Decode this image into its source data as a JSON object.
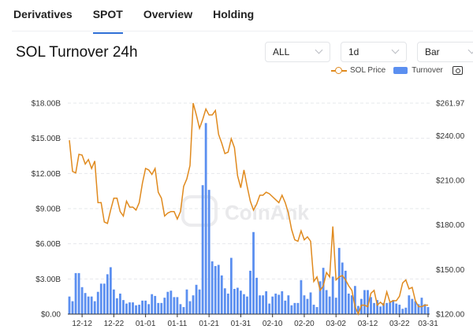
{
  "tabs": [
    {
      "label": "Derivatives"
    },
    {
      "label": "SPOT",
      "active": true
    },
    {
      "label": "Overview"
    },
    {
      "label": "Holding"
    }
  ],
  "title": "SOL Turnover 24h",
  "controls": {
    "range": "ALL",
    "interval": "1d",
    "chart_type": "Bar"
  },
  "legend": {
    "price": "SOL Price",
    "turnover": "Turnover",
    "camera_icon": "camera-icon"
  },
  "watermark": "CoinAnk",
  "colors": {
    "price": "#e08a1e",
    "turnover": "#5b8ff0",
    "accent": "#2f6fd6"
  },
  "chart_data": {
    "type": "bar+line",
    "grid": true,
    "legend_position": "top-right",
    "left_axis": {
      "ticks": [
        "$0.00",
        "$3.00B",
        "$6.00B",
        "$9.00B",
        "$12.00B",
        "$15.00B",
        "$18.00B"
      ],
      "range": [
        0,
        18
      ]
    },
    "right_axis": {
      "ticks": [
        "$120.00",
        "$150.00",
        "$180.00",
        "$210.00",
        "$240.00",
        "$261.97"
      ],
      "range": [
        120,
        261.97
      ]
    },
    "x_ticks": [
      "12-12",
      "12-22",
      "01-01",
      "01-11",
      "01-21",
      "01-31",
      "02-10",
      "02-20",
      "03-02",
      "03-12",
      "03-22",
      "03-31"
    ],
    "x": [
      "12-08",
      "12-09",
      "12-10",
      "12-11",
      "12-12",
      "12-13",
      "12-14",
      "12-15",
      "12-16",
      "12-17",
      "12-18",
      "12-19",
      "12-20",
      "12-21",
      "12-22",
      "12-23",
      "12-24",
      "12-25",
      "12-26",
      "12-27",
      "12-28",
      "12-29",
      "12-30",
      "12-31",
      "01-01",
      "01-02",
      "01-03",
      "01-04",
      "01-05",
      "01-06",
      "01-07",
      "01-08",
      "01-09",
      "01-10",
      "01-11",
      "01-12",
      "01-13",
      "01-14",
      "01-15",
      "01-16",
      "01-17",
      "01-18",
      "01-19",
      "01-20",
      "01-21",
      "01-22",
      "01-23",
      "01-24",
      "01-25",
      "01-26",
      "01-27",
      "01-28",
      "01-29",
      "01-30",
      "01-31",
      "02-01",
      "02-02",
      "02-03",
      "02-04",
      "02-05",
      "02-06",
      "02-07",
      "02-08",
      "02-09",
      "02-10",
      "02-11",
      "02-12",
      "02-13",
      "02-14",
      "02-15",
      "02-16",
      "02-17",
      "02-18",
      "02-19",
      "02-20",
      "02-21",
      "02-22",
      "02-23",
      "02-24",
      "02-25",
      "02-26",
      "02-27",
      "02-28",
      "03-01",
      "03-02",
      "03-03",
      "03-04",
      "03-05",
      "03-06",
      "03-07",
      "03-08",
      "03-09",
      "03-10",
      "03-11",
      "03-12",
      "03-13",
      "03-14",
      "03-15",
      "03-16",
      "03-17",
      "03-18",
      "03-19",
      "03-20",
      "03-21",
      "03-22",
      "03-23",
      "03-24",
      "03-25",
      "03-26",
      "03-27",
      "03-28",
      "03-29",
      "03-30",
      "03-31"
    ],
    "series": [
      {
        "name": "Turnover",
        "axis": "left",
        "unit": "B USD",
        "values": [
          1.5,
          1.1,
          3.5,
          3.5,
          2.3,
          1.8,
          1.5,
          1.5,
          1.1,
          1.9,
          2.6,
          2.6,
          3.4,
          4.0,
          2.1,
          1.35,
          1.75,
          1.2,
          0.9,
          1.0,
          1.0,
          0.75,
          0.8,
          1.15,
          1.15,
          0.85,
          1.7,
          1.55,
          0.95,
          0.95,
          1.4,
          1.9,
          2.0,
          1.45,
          1.45,
          0.85,
          0.6,
          2.1,
          1.1,
          1.6,
          2.5,
          2.1,
          11.0,
          16.3,
          10.6,
          4.5,
          4.1,
          4.2,
          3.3,
          2.2,
          1.75,
          4.8,
          2.15,
          2.25,
          2.0,
          1.7,
          1.5,
          3.7,
          7.0,
          3.1,
          1.6,
          1.6,
          1.95,
          0.9,
          1.5,
          1.75,
          1.65,
          1.95,
          1.15,
          1.6,
          0.75,
          0.95,
          0.95,
          2.9,
          1.6,
          1.3,
          1.85,
          0.8,
          0.6,
          2.8,
          3.95,
          2.05,
          1.5,
          3.2,
          1.4,
          5.65,
          4.4,
          3.7,
          1.75,
          1.6,
          2.4,
          0.7,
          1.3,
          2.05,
          2.05,
          1.45,
          0.95,
          1.2,
          0.65,
          0.95,
          0.95,
          1.0,
          1.2,
          0.9,
          0.8,
          0.45,
          0.55,
          1.6,
          1.3,
          1.1,
          0.85,
          1.4,
          0.85,
          0.6
        ]
      },
      {
        "name": "SOL Price",
        "axis": "right",
        "unit": "USD",
        "values": [
          237,
          216,
          215,
          227.5,
          227,
          221,
          224,
          218,
          223,
          195,
          195,
          182,
          181,
          190,
          198,
          198,
          189,
          186,
          196,
          192,
          192,
          190,
          195,
          208,
          218,
          217,
          214,
          218,
          202,
          198,
          186,
          188,
          189,
          189,
          184,
          189,
          206,
          211,
          220,
          261.97,
          254,
          245,
          251,
          258,
          254,
          254,
          257,
          241,
          235,
          228,
          229,
          238,
          232,
          213,
          205,
          217,
          206,
          196,
          190,
          194,
          200,
          200,
          202,
          201,
          199,
          197,
          195,
          200,
          195,
          188,
          177,
          170,
          169,
          176,
          170,
          172,
          169,
          142,
          145,
          136,
          139,
          148,
          145,
          179,
          143,
          145,
          146,
          143,
          139,
          136,
          125,
          120,
          126,
          126,
          125,
          134,
          136,
          126,
          128,
          126,
          135,
          128,
          129,
          129,
          132,
          141,
          143,
          137,
          138,
          129,
          125,
          125,
          126,
          126
        ]
      }
    ]
  }
}
